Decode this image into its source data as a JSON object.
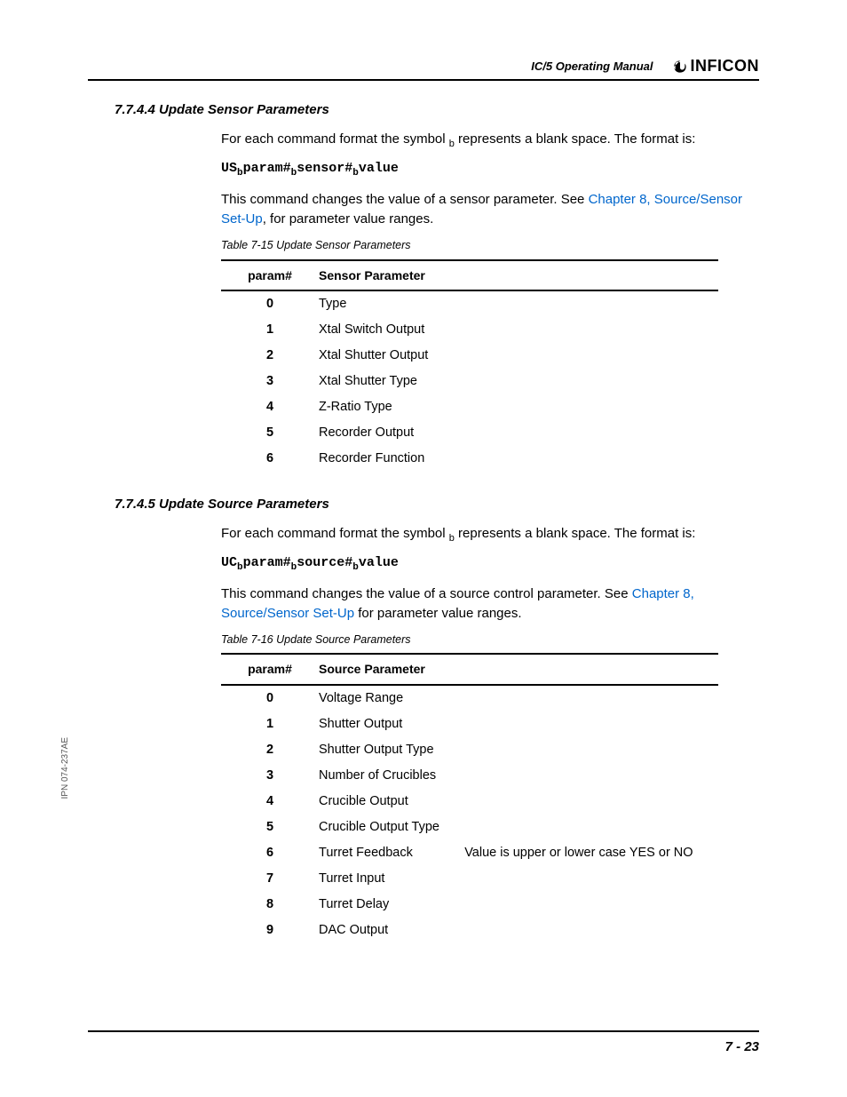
{
  "header": {
    "manual_title": "IC/5 Operating Manual",
    "logo_text": "INFICON"
  },
  "side_label": "IPN 074-237AE",
  "page_number": "7 - 23",
  "sections": [
    {
      "number": "7.7.4.4",
      "title": "Update Sensor Parameters",
      "intro_1": "For each command format the symbol ",
      "intro_2": " represents a blank space. The format is:",
      "cmd_prefix": "US",
      "cmd_p1": "param#",
      "cmd_p2": "sensor#",
      "cmd_p3": "value",
      "desc_pre": "This command changes the value of a sensor parameter. See ",
      "link_text": "Chapter 8, Source/Sensor Set-Up",
      "desc_post": ", for parameter value ranges.",
      "table_caption": "Table 7-15  Update Sensor Parameters",
      "col_param": "param#",
      "col_value": "Sensor Parameter",
      "rows": [
        {
          "n": "0",
          "v": "Type"
        },
        {
          "n": "1",
          "v": "Xtal Switch Output"
        },
        {
          "n": "2",
          "v": "Xtal Shutter Output"
        },
        {
          "n": "3",
          "v": "Xtal Shutter Type"
        },
        {
          "n": "4",
          "v": "Z-Ratio Type"
        },
        {
          "n": "5",
          "v": "Recorder Output"
        },
        {
          "n": "6",
          "v": "Recorder Function"
        }
      ]
    },
    {
      "number": "7.7.4.5",
      "title": "Update Source Parameters",
      "intro_1": "For each command format the symbol ",
      "intro_2": " represents a blank space. The format is:",
      "cmd_prefix": "UC",
      "cmd_p1": "param#",
      "cmd_p2": "source#",
      "cmd_p3": "value",
      "desc_pre": "This command changes the value of a source control parameter. See ",
      "link_text": "Chapter 8, Source/Sensor Set-Up",
      "desc_post": " for parameter value ranges.",
      "table_caption": "Table 7-16  Update Source Parameters",
      "col_param": "param#",
      "col_value": "Source Parameter",
      "rows": [
        {
          "n": "0",
          "v": "Voltage Range"
        },
        {
          "n": "1",
          "v": "Shutter Output"
        },
        {
          "n": "2",
          "v": "Shutter Output Type"
        },
        {
          "n": "3",
          "v": "Number of Crucibles"
        },
        {
          "n": "4",
          "v": "Crucible Output"
        },
        {
          "n": "5",
          "v": "Crucible Output Type"
        },
        {
          "n": "6",
          "v": "Turret Feedback",
          "extra": "Value is upper or lower case YES or NO"
        },
        {
          "n": "7",
          "v": "Turret Input"
        },
        {
          "n": "8",
          "v": "Turret Delay"
        },
        {
          "n": "9",
          "v": "DAC Output"
        }
      ]
    }
  ]
}
